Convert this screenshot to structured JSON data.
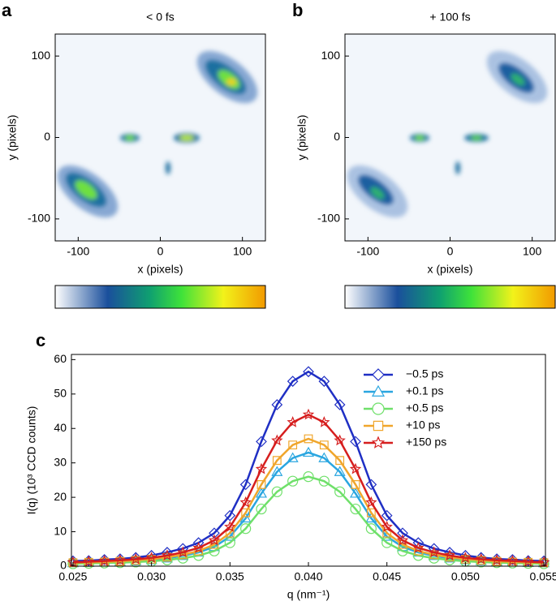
{
  "chart_data": [
    {
      "type": "image",
      "panel_label": "a",
      "title": "< 0 fs",
      "xlabel": "x (pixels)",
      "ylabel": "y (pixels)",
      "xlim": [
        -128,
        128
      ],
      "ylim": [
        -127,
        127
      ],
      "xticks": [
        -100,
        0,
        100
      ],
      "yticks": [
        -100,
        0,
        100
      ]
    },
    {
      "type": "image",
      "panel_label": "b",
      "title": "+ 100 fs",
      "xlabel": "x (pixels)",
      "ylabel": "y (pixels)",
      "xlim": [
        -128,
        128
      ],
      "ylim": [
        -127,
        127
      ],
      "xticks": [
        -100,
        0,
        100
      ],
      "yticks": [
        -100,
        0,
        100
      ]
    },
    {
      "type": "line",
      "panel_label": "c",
      "xlabel": "q (nm⁻¹)",
      "ylabel": "I(q) (10³ CCD counts)",
      "xlim": [
        0.0249,
        0.0551
      ],
      "ylim": [
        0,
        61.5
      ],
      "xticks": [
        0.025,
        {
          "value": 0.03,
          "label": "0.030"
        },
        0.035,
        {
          "value": 0.04,
          "label": "0.040"
        },
        0.045,
        {
          "value": 0.05,
          "label": "0.050"
        },
        0.055
      ],
      "yticks": [
        0,
        10,
        20,
        30,
        40,
        50,
        60
      ],
      "x": [
        0.025,
        0.026,
        0.027,
        0.028,
        0.029,
        0.03,
        0.031,
        0.032,
        0.033,
        0.034,
        0.035,
        0.036,
        0.037,
        0.038,
        0.039,
        0.04,
        0.041,
        0.042,
        0.043,
        0.044,
        0.045,
        0.046,
        0.047,
        0.048,
        0.049,
        0.05,
        0.051,
        0.052,
        0.053,
        0.054,
        0.055
      ],
      "series": [
        {
          "name": "−0.5 ps",
          "color": "#1f2fc4",
          "marker": "diamond",
          "values": [
            1.5,
            1.6,
            1.9,
            2.1,
            2.5,
            3.1,
            4.0,
            5.1,
            6.8,
            9.6,
            14.7,
            23.7,
            36.2,
            46.9,
            53.7,
            56.5,
            53.7,
            46.9,
            36.2,
            23.7,
            14.7,
            9.6,
            6.8,
            5.1,
            4.0,
            3.1,
            2.5,
            2.1,
            1.9,
            1.6,
            1.5
          ]
        },
        {
          "name": "+0.1 ps",
          "color": "#2aa6e0",
          "marker": "triangle",
          "values": [
            0.9,
            1.0,
            1.1,
            1.3,
            1.5,
            1.8,
            2.3,
            3.0,
            4.0,
            5.6,
            8.6,
            13.9,
            21.1,
            27.4,
            31.4,
            33,
            31.4,
            27.4,
            21.1,
            13.9,
            8.6,
            5.6,
            4.0,
            3.0,
            2.3,
            1.8,
            1.5,
            1.3,
            1.1,
            1.0,
            0.9
          ]
        },
        {
          "name": "+0.5 ps",
          "color": "#6fe06a",
          "marker": "circle",
          "values": [
            0.7,
            0.8,
            0.9,
            1.0,
            1.2,
            1.4,
            1.8,
            2.3,
            3.1,
            4.4,
            6.8,
            10.9,
            16.6,
            21.6,
            24.7,
            26,
            24.7,
            21.6,
            16.6,
            10.9,
            6.8,
            4.4,
            3.1,
            2.3,
            1.8,
            1.4,
            1.2,
            1.0,
            0.9,
            0.8,
            0.7
          ]
        },
        {
          "name": "+10 ps",
          "color": "#f0a62c",
          "marker": "square",
          "values": [
            1.0,
            1.1,
            1.2,
            1.4,
            1.7,
            2.0,
            2.6,
            3.3,
            4.4,
            6.3,
            9.6,
            15.5,
            23.7,
            30.7,
            35.2,
            37,
            35.2,
            30.7,
            23.7,
            15.5,
            9.6,
            6.3,
            4.4,
            3.3,
            2.6,
            2.0,
            1.7,
            1.4,
            1.2,
            1.1,
            1.0
          ]
        },
        {
          "name": "+150 ps",
          "color": "#d61e1e",
          "marker": "star",
          "values": [
            1.1,
            1.3,
            1.5,
            1.7,
            2.0,
            2.4,
            3.1,
            4.0,
            5.3,
            7.5,
            11.4,
            18.5,
            28.2,
            36.5,
            41.8,
            44,
            41.8,
            36.5,
            28.2,
            18.5,
            11.4,
            7.5,
            5.3,
            4.0,
            3.1,
            2.4,
            2.0,
            1.7,
            1.5,
            1.3,
            1.1
          ]
        }
      ]
    }
  ]
}
